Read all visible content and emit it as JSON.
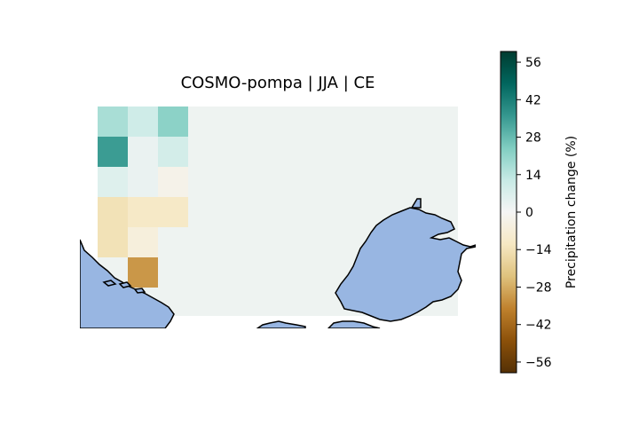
{
  "title": "COSMO-pompa | JJA | CE",
  "colorbar": {
    "label": "Precipitation change (%)",
    "range": [
      -60,
      60
    ],
    "ticks": [
      56,
      42,
      28,
      14,
      0,
      -14,
      -28,
      -42,
      -56
    ],
    "tick_labels": [
      "56",
      "42",
      "28",
      "14",
      "0",
      "−14",
      "−28",
      "−42",
      "−56"
    ],
    "colormap": "BrBG"
  },
  "map": {
    "land_color": "#eef3f1",
    "water_color": "#98b6e2",
    "coastline_color": "#000000"
  },
  "chart_data": {
    "type": "heatmap",
    "variable": "Precipitation change (%)",
    "grid_values": [
      [
        17,
        10,
        22
      ],
      [
        35,
        3,
        9
      ],
      [
        6,
        3,
        -3
      ],
      [
        -14,
        -11,
        -11
      ],
      [
        -14,
        -6,
        null
      ],
      [
        null,
        -32,
        null
      ]
    ]
  }
}
